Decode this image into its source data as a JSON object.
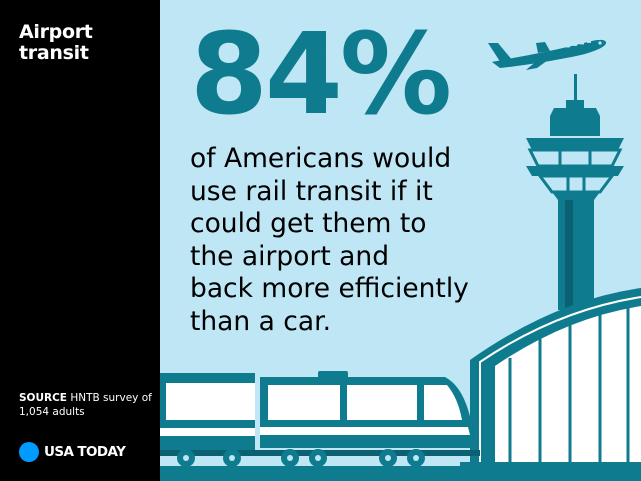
{
  "title": "Airport transit",
  "stat": {
    "value": "84%",
    "statement_lines": [
      "of Americans would",
      "use rail transit if it",
      "could get them to",
      "the airport and",
      "back more efficiently",
      "than a car."
    ]
  },
  "source": {
    "label": "SOURCE",
    "text": "HNTB survey of 1,054 adults"
  },
  "brand": {
    "name": "USA TODAY",
    "dot_color": "#009bff"
  },
  "colors": {
    "sidebar": "#000000",
    "panel": "#bfe6f5",
    "accent": "#0f7b8e",
    "dark_accent": "#0b6172"
  },
  "illustration": {
    "elements": [
      "airplane-icon",
      "control-tower-icon",
      "terminal-building-icon",
      "train-icon"
    ]
  },
  "chart_data": {
    "type": "table",
    "title": "Airport transit",
    "values": [
      84
    ],
    "unit": "%",
    "source": "HNTB survey of 1,054 adults"
  }
}
